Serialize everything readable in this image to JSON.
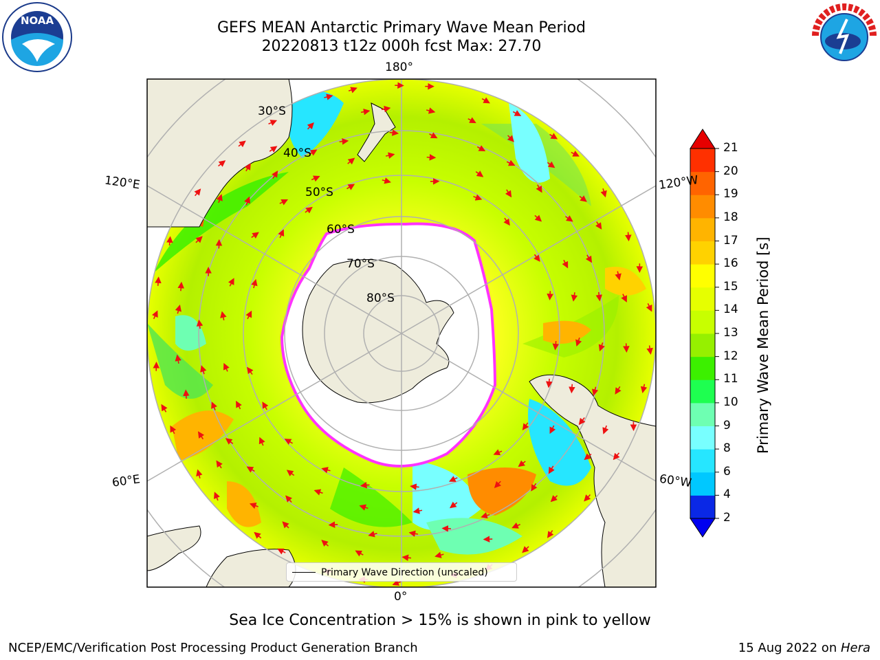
{
  "header": {
    "title_line1": "GEFS MEAN Antarctic Primary Wave Mean Period",
    "title_line2": "20220813 t12z 000h fcst   Max: 27.70"
  },
  "logos": {
    "left": "noaa-logo",
    "right": "nws-logo"
  },
  "map": {
    "projection": "south-polar-stereographic",
    "longitude_labels": {
      "top": "180°",
      "bottom": "0°",
      "left_upper": "120°E",
      "left_lower": "60°E",
      "right_upper": "120°W",
      "right_lower": "60°W"
    },
    "latitude_labels": [
      "30°S",
      "40°S",
      "50°S",
      "60°S",
      "70°S",
      "80°S"
    ],
    "legend_label": "Primary Wave Direction (unscaled)",
    "colors": {
      "land": "#eeecdc",
      "ice": "#ffffff",
      "sea_ice_edge": "#ff33ff",
      "arrow": "#ee1111"
    }
  },
  "colorbar": {
    "label": "Primary Wave Mean Period [s]",
    "ticks": [
      "21",
      "20",
      "19",
      "18",
      "17",
      "16",
      "15",
      "14",
      "13",
      "12",
      "11",
      "10",
      "9",
      "8",
      "6",
      "4",
      "2"
    ],
    "colors_bottom_to_top": [
      "#0a28e6",
      "#00c8ff",
      "#26e6ff",
      "#78ffff",
      "#6effb2",
      "#1eff50",
      "#3cf000",
      "#96f000",
      "#c8ff00",
      "#e6ff00",
      "#ffff00",
      "#ffd200",
      "#ffb400",
      "#ff8c00",
      "#ff6400",
      "#ff3000",
      "#e60000"
    ]
  },
  "footnote": "Sea Ice Concentration > 15% is shown in pink to yellow",
  "footer": {
    "left": "NCEP/EMC/Verification Post Processing Product Generation Branch",
    "right_date": "15 Aug 2022 on ",
    "right_host": "Hera"
  }
}
